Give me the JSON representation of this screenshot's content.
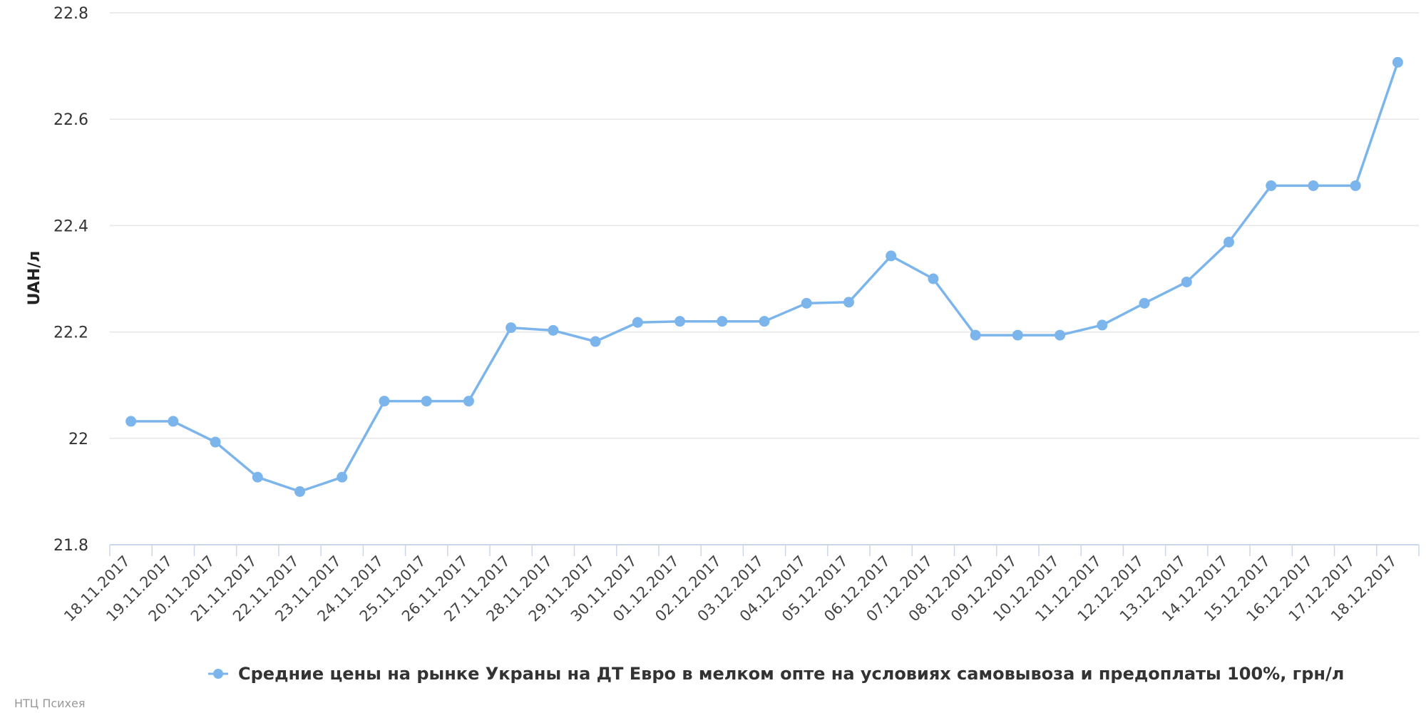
{
  "chart_data": {
    "type": "line",
    "ylabel": "UAH/л",
    "xlabel": "",
    "ylim": [
      21.8,
      22.8
    ],
    "yticks": [
      21.8,
      22.0,
      22.2,
      22.4,
      22.6,
      22.8
    ],
    "ytick_labels": [
      "21.8",
      "22",
      "22.2",
      "22.4",
      "22.6",
      "22.8"
    ],
    "grid": true,
    "legend": "bottom-center",
    "categories": [
      "18.11.2017",
      "19.11.2017",
      "20.11.2017",
      "21.11.2017",
      "22.11.2017",
      "23.11.2017",
      "24.11.2017",
      "25.11.2017",
      "26.11.2017",
      "27.11.2017",
      "28.11.2017",
      "29.11.2017",
      "30.11.2017",
      "01.12.2017",
      "02.12.2017",
      "03.12.2017",
      "04.12.2017",
      "05.12.2017",
      "06.12.2017",
      "07.12.2017",
      "08.12.2017",
      "09.12.2017",
      "10.12.2017",
      "11.12.2017",
      "12.12.2017",
      "13.12.2017",
      "14.12.2017",
      "15.12.2017",
      "16.12.2017",
      "17.12.2017",
      "18.12.2017"
    ],
    "series": [
      {
        "name": "Средние цены на рынке Украны на ДТ Евро в мелком опте на условиях самовывоза и предоплаты 100%, грн/л",
        "color": "#7cb5ec",
        "values": [
          22.032,
          22.032,
          21.993,
          21.927,
          21.9,
          21.927,
          22.07,
          22.07,
          22.07,
          22.208,
          22.203,
          22.182,
          22.218,
          22.22,
          22.22,
          22.22,
          22.254,
          22.256,
          22.343,
          22.3,
          22.194,
          22.194,
          22.194,
          22.213,
          22.254,
          22.294,
          22.369,
          22.475,
          22.475,
          22.475,
          22.707
        ]
      }
    ]
  },
  "credits": "НТЦ Психея"
}
